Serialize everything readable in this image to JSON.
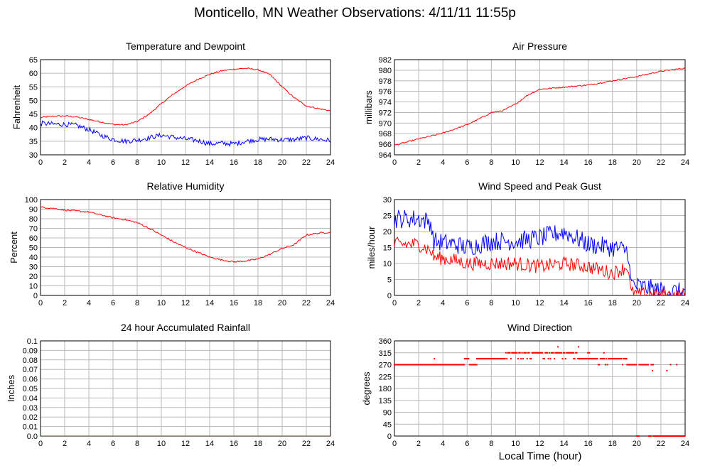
{
  "page": {
    "title": "Monticello, MN Weather Observations: 4/11/11 11:55p",
    "x_axis_title": "Local Time (hour)"
  },
  "colors": {
    "red": "#ff0000",
    "blue": "#0000ff",
    "grid": "#b8b8b8",
    "frame": "#000000"
  },
  "chart_data": [
    {
      "id": "temp",
      "type": "line",
      "title": "Temperature and Dewpoint",
      "xlabel": "",
      "ylabel": "Fahrenheit",
      "xlim": [
        0,
        24
      ],
      "ylim": [
        30,
        65
      ],
      "xticks": [
        0,
        2,
        4,
        6,
        8,
        10,
        12,
        14,
        16,
        18,
        20,
        22,
        24
      ],
      "yticks": [
        30,
        35,
        40,
        45,
        50,
        55,
        60,
        65
      ],
      "ytick_labels": [
        "30",
        "35",
        "40",
        "45",
        "50",
        "55",
        "60",
        "65"
      ],
      "grid": true,
      "series": [
        {
          "color": "#ff0000",
          "noise": 0.25,
          "points": [
            [
              0,
              43.7
            ],
            [
              1,
              44.2
            ],
            [
              2,
              44.3
            ],
            [
              3,
              43.9
            ],
            [
              4,
              43.0
            ],
            [
              5,
              42.1
            ],
            [
              6,
              41.2
            ],
            [
              7,
              41.0
            ],
            [
              8,
              42.2
            ],
            [
              9,
              45.0
            ],
            [
              10,
              48.8
            ],
            [
              11,
              52.3
            ],
            [
              12,
              55.3
            ],
            [
              13,
              57.7
            ],
            [
              14,
              59.6
            ],
            [
              15,
              60.9
            ],
            [
              16,
              61.5
            ],
            [
              17,
              61.8
            ],
            [
              18,
              61.3
            ],
            [
              19,
              59.5
            ],
            [
              20,
              55.0
            ],
            [
              21,
              51.0
            ],
            [
              22,
              48.0
            ],
            [
              23,
              47.0
            ],
            [
              24,
              46.2
            ]
          ]
        },
        {
          "color": "#0000ff",
          "noise": 0.9,
          "points": [
            [
              0,
              41.6
            ],
            [
              1,
              41.3
            ],
            [
              2,
              41.2
            ],
            [
              3,
              40.8
            ],
            [
              4,
              39.3
            ],
            [
              5,
              37.2
            ],
            [
              6,
              35.7
            ],
            [
              7,
              35.0
            ],
            [
              8,
              35.4
            ],
            [
              9,
              36.3
            ],
            [
              10,
              37.2
            ],
            [
              11,
              36.5
            ],
            [
              12,
              35.8
            ],
            [
              13,
              35.3
            ],
            [
              14,
              34.0
            ],
            [
              15,
              34.3
            ],
            [
              16,
              34.0
            ],
            [
              17,
              35.0
            ],
            [
              18,
              35.6
            ],
            [
              19,
              35.8
            ],
            [
              20,
              35.5
            ],
            [
              21,
              35.6
            ],
            [
              22,
              36.2
            ],
            [
              23,
              35.8
            ],
            [
              24,
              35.2
            ]
          ]
        }
      ]
    },
    {
      "id": "pressure",
      "type": "line",
      "title": "Air Pressure",
      "xlabel": "",
      "ylabel": "millibars",
      "xlim": [
        0,
        24
      ],
      "ylim": [
        964,
        982
      ],
      "xticks": [
        0,
        2,
        4,
        6,
        8,
        10,
        12,
        14,
        16,
        18,
        20,
        22,
        24
      ],
      "yticks": [
        964,
        966,
        968,
        970,
        972,
        974,
        976,
        978,
        980,
        982
      ],
      "ytick_labels": [
        "964",
        "966",
        "968",
        "970",
        "972",
        "974",
        "976",
        "978",
        "980",
        "982"
      ],
      "grid": true,
      "series": [
        {
          "color": "#ff0000",
          "noise": 0.12,
          "points": [
            [
              0,
              965.8
            ],
            [
              2,
              967.0
            ],
            [
              4,
              968.1
            ],
            [
              6,
              969.7
            ],
            [
              7,
              970.8
            ],
            [
              8,
              972.0
            ],
            [
              9,
              972.4
            ],
            [
              10,
              973.6
            ],
            [
              11,
              975.3
            ],
            [
              12,
              976.4
            ],
            [
              13,
              976.6
            ],
            [
              14,
              976.8
            ],
            [
              16,
              977.2
            ],
            [
              18,
              978.0
            ],
            [
              20,
              978.8
            ],
            [
              22,
              979.8
            ],
            [
              24,
              980.4
            ]
          ]
        }
      ]
    },
    {
      "id": "humidity",
      "type": "line",
      "title": "Relative Humidity",
      "xlabel": "",
      "ylabel": "Percent",
      "xlim": [
        0,
        24
      ],
      "ylim": [
        0,
        100
      ],
      "xticks": [
        0,
        2,
        4,
        6,
        8,
        10,
        12,
        14,
        16,
        18,
        20,
        22,
        24
      ],
      "yticks": [
        0,
        10,
        20,
        30,
        40,
        50,
        60,
        70,
        80,
        90,
        100
      ],
      "ytick_labels": [
        "0",
        "10",
        "20",
        "30",
        "40",
        "50",
        "60",
        "70",
        "80",
        "90",
        "100"
      ],
      "grid": true,
      "series": [
        {
          "color": "#ff0000",
          "noise": 0.8,
          "points": [
            [
              0,
              92
            ],
            [
              1,
              91
            ],
            [
              2,
              89
            ],
            [
              3,
              88
            ],
            [
              4,
              87
            ],
            [
              5,
              84
            ],
            [
              6,
              81
            ],
            [
              7,
              79
            ],
            [
              8,
              76
            ],
            [
              9,
              70
            ],
            [
              10,
              63
            ],
            [
              11,
              56
            ],
            [
              12,
              50
            ],
            [
              13,
              45
            ],
            [
              14,
              40
            ],
            [
              15,
              37
            ],
            [
              16,
              35
            ],
            [
              17,
              36
            ],
            [
              18,
              38
            ],
            [
              19,
              43
            ],
            [
              20,
              49
            ],
            [
              21,
              53
            ],
            [
              22,
              63
            ],
            [
              23,
              65
            ],
            [
              24,
              66
            ]
          ]
        }
      ]
    },
    {
      "id": "wind",
      "type": "line",
      "title": "Wind Speed and Peak Gust",
      "xlabel": "",
      "ylabel": "miles/hour",
      "xlim": [
        0,
        24
      ],
      "ylim": [
        0,
        30
      ],
      "xticks": [
        0,
        2,
        4,
        6,
        8,
        10,
        12,
        14,
        16,
        18,
        20,
        22,
        24
      ],
      "yticks": [
        0,
        5,
        10,
        15,
        20,
        25,
        30
      ],
      "ytick_labels": [
        "0",
        "5",
        "10",
        "15",
        "20",
        "25",
        "30"
      ],
      "grid": true,
      "series": [
        {
          "color": "#0000ff",
          "noise": 3.0,
          "points": [
            [
              0,
              24
            ],
            [
              1,
              24
            ],
            [
              2,
              24
            ],
            [
              3,
              23
            ],
            [
              3.2,
              17
            ],
            [
              5,
              16
            ],
            [
              6,
              15
            ],
            [
              8,
              17
            ],
            [
              10,
              17
            ],
            [
              12,
              18
            ],
            [
              14,
              20
            ],
            [
              16,
              16
            ],
            [
              18,
              15
            ],
            [
              19.3,
              14
            ],
            [
              19.5,
              4
            ],
            [
              20,
              3
            ],
            [
              22,
              1.5
            ],
            [
              24,
              1
            ]
          ]
        },
        {
          "color": "#ff0000",
          "noise": 2.2,
          "points": [
            [
              0,
              16
            ],
            [
              1,
              16
            ],
            [
              2,
              16
            ],
            [
              3,
              14
            ],
            [
              3.2,
              12
            ],
            [
              5,
              11
            ],
            [
              6,
              10
            ],
            [
              8,
              10
            ],
            [
              10,
              10
            ],
            [
              12,
              9
            ],
            [
              14,
              10
            ],
            [
              16,
              9
            ],
            [
              18,
              7
            ],
            [
              19.3,
              9
            ],
            [
              19.5,
              1
            ],
            [
              20,
              0.5
            ],
            [
              22,
              0
            ],
            [
              24,
              0
            ]
          ]
        }
      ]
    },
    {
      "id": "rain",
      "type": "line",
      "title": "24 hour Accumulated Rainfall",
      "xlabel": "",
      "ylabel": "Inches",
      "xlim": [
        0,
        24
      ],
      "ylim": [
        0,
        0.1
      ],
      "xticks": [
        0,
        2,
        4,
        6,
        8,
        10,
        12,
        14,
        16,
        18,
        20,
        22,
        24
      ],
      "yticks": [
        0,
        0.01,
        0.02,
        0.03,
        0.04,
        0.05,
        0.06,
        0.07,
        0.08,
        0.09,
        0.1
      ],
      "ytick_labels": [
        "0.0",
        "0.01",
        "0.02",
        "0.03",
        "0.04",
        "0.05",
        "0.06",
        "0.07",
        "0.08",
        "0.09",
        "0.1"
      ],
      "grid": true,
      "series": [
        {
          "color": "#ff0000",
          "noise": 0,
          "points": [
            [
              0,
              0
            ],
            [
              24,
              0
            ]
          ]
        }
      ]
    },
    {
      "id": "winddir",
      "type": "scatter",
      "title": "Wind Direction",
      "xlabel": "Local Time (hour)",
      "ylabel": "degrees",
      "xlim": [
        0,
        24
      ],
      "ylim": [
        0,
        360
      ],
      "xticks": [
        0,
        2,
        4,
        6,
        8,
        10,
        12,
        14,
        16,
        18,
        20,
        22,
        24
      ],
      "yticks": [
        0,
        45,
        90,
        135,
        180,
        225,
        270,
        315,
        360
      ],
      "ytick_labels": [
        "0",
        "45",
        "90",
        "135",
        "180",
        "225",
        "270",
        "315",
        "360"
      ],
      "grid": true,
      "series": [
        {
          "color": "#ff0000",
          "segments": [
            {
              "from": 0,
              "to": 5.8,
              "value": 270
            },
            {
              "from": 5.8,
              "to": 6.2,
              "value": 292.5
            },
            {
              "from": 6.2,
              "to": 6.8,
              "value": 270
            },
            {
              "from": 6.8,
              "to": 9.2,
              "value": 292.5
            },
            {
              "from": 9.2,
              "to": 14.8,
              "value": 315,
              "alt": 292.5
            },
            {
              "from": 14.8,
              "to": 16.0,
              "value": 292.5,
              "alt": 315
            },
            {
              "from": 16.0,
              "to": 17.5,
              "value": 292.5,
              "alt": 270
            },
            {
              "from": 17.5,
              "to": 19.2,
              "value": 292.5,
              "alt": 270
            },
            {
              "from": 19.2,
              "to": 20.0,
              "value": 270
            },
            {
              "from": 20.0,
              "to": 20.2,
              "value": 0
            },
            {
              "from": 20.2,
              "to": 21.0,
              "value": 270
            },
            {
              "from": 21.0,
              "to": 21.2,
              "value": 0
            },
            {
              "from": 21.2,
              "to": 21.4,
              "value": 270
            },
            {
              "from": 21.4,
              "to": 24.0,
              "value": 0
            }
          ],
          "extra_points": [
            [
              3.3,
              292.5
            ],
            [
              13.5,
              337.5
            ],
            [
              15.2,
              337.5
            ],
            [
              21.3,
              247.5
            ],
            [
              22.5,
              247.5
            ],
            [
              22.8,
              270
            ],
            [
              23.3,
              270
            ],
            [
              16.1,
              315
            ],
            [
              17.3,
              315
            ]
          ]
        }
      ]
    }
  ]
}
